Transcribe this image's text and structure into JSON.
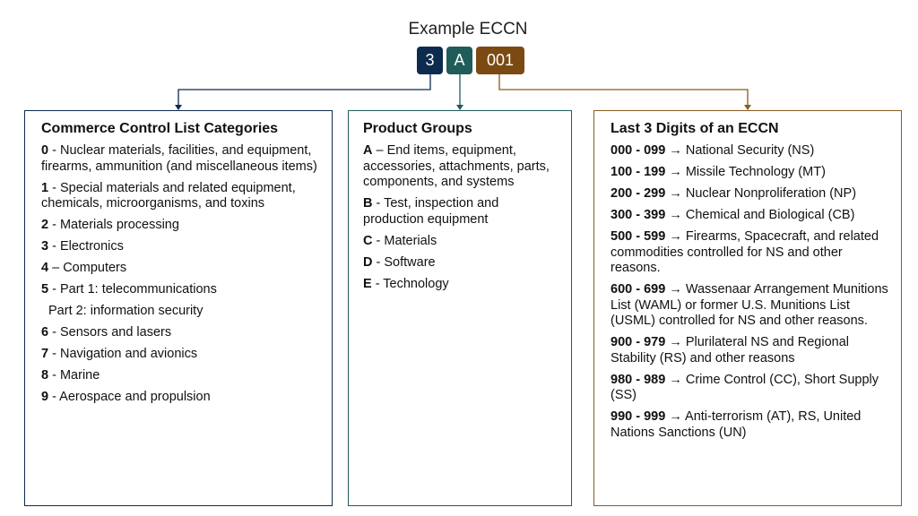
{
  "title": "Example ECCN",
  "code": [
    "3",
    "A",
    "001"
  ],
  "boxes": [
    {
      "title": "Commerce Control List Categories",
      "items": [
        {
          "key": "0",
          "text": "- Nuclear materials, facilities, and equipment, firearms, ammunition (and miscellaneous items)"
        },
        {
          "key": "1",
          "text": "- Special materials and related equipment, chemicals, microorganisms, and toxins"
        },
        {
          "key": "2",
          "text": "- Materials processing"
        },
        {
          "key": "3",
          "text": "- Electronics"
        },
        {
          "key": "4",
          "text": "– Computers"
        },
        {
          "key": "5",
          "text": "- Part 1: telecommunications",
          "continuation": "Part 2: information security"
        },
        {
          "key": "6",
          "text": "- Sensors and lasers"
        },
        {
          "key": "7",
          "text": "- Navigation and avionics"
        },
        {
          "key": "8",
          "text": "- Marine"
        },
        {
          "key": "9",
          "text": "- Aerospace and propulsion"
        }
      ]
    },
    {
      "title": "Product Groups",
      "items": [
        {
          "key": "A",
          "text": "– End items, equipment, accessories, attachments, parts, components, and systems"
        },
        {
          "key": "B",
          "text": "- Test, inspection and production equipment"
        },
        {
          "key": "C",
          "text": "- Materials"
        },
        {
          "key": "D",
          "text": "- Software"
        },
        {
          "key": "E",
          "text": "- Technology"
        }
      ]
    },
    {
      "title": "Last 3 Digits of an ECCN",
      "items": [
        {
          "key": "000 - 099",
          "text": "→ National Security (NS)"
        },
        {
          "key": "100 - 199",
          "text": "→ Missile Technology (MT)"
        },
        {
          "key": "200 - 299",
          "text": "→ Nuclear Nonproliferation (NP)"
        },
        {
          "key": "300 - 399",
          "text": "→ Chemical and Biological (CB)"
        },
        {
          "key": "500 - 599",
          "text": "→ Firearms, Spacecraft, and related commodities controlled for NS and other reasons."
        },
        {
          "key": "600 - 699",
          "text": "→ Wassenaar Arrangement Munitions List (WAML) or former U.S. Munitions List (USML) controlled for NS and other reasons."
        },
        {
          "key": "900 - 979",
          "text": "→ Plurilateral NS and Regional Stability (RS) and other reasons"
        },
        {
          "key": "980 - 989",
          "text": "→ Crime Control (CC), Short Supply (SS)"
        },
        {
          "key": "990 - 999",
          "text": "→ Anti-terrorism (AT), RS, United Nations Sanctions (UN)"
        }
      ]
    }
  ]
}
